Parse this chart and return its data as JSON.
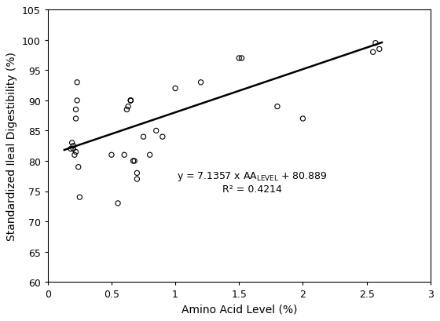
{
  "x_data": [
    0.18,
    0.19,
    0.2,
    0.2,
    0.21,
    0.22,
    0.22,
    0.22,
    0.23,
    0.23,
    0.24,
    0.25,
    0.5,
    0.55,
    0.6,
    0.62,
    0.63,
    0.65,
    0.65,
    0.65,
    0.67,
    0.68,
    0.7,
    0.7,
    0.75,
    0.8,
    0.85,
    0.9,
    1.0,
    1.2,
    1.5,
    1.52,
    1.8,
    2.0,
    2.55,
    2.57,
    2.6
  ],
  "y_data": [
    82.0,
    83.0,
    82.0,
    82.5,
    81.0,
    81.5,
    87.0,
    88.5,
    90.0,
    93.0,
    79.0,
    74.0,
    81.0,
    73.0,
    81.0,
    88.5,
    89.0,
    90.0,
    90.0,
    90.0,
    80.0,
    80.0,
    77.0,
    78.0,
    84.0,
    81.0,
    85.0,
    84.0,
    92.0,
    93.0,
    97.0,
    97.0,
    89.0,
    87.0,
    98.0,
    99.5,
    98.5
  ],
  "slope": 7.1357,
  "intercept": 80.889,
  "r2": 0.4214,
  "x_line_start": 0.13,
  "x_line_end": 2.62,
  "xlabel": "Amino Acid Level (%)",
  "ylabel": "Standardized Ileal Digestibility (%)",
  "xlim": [
    0,
    3
  ],
  "ylim": [
    60,
    105
  ],
  "xticks": [
    0,
    0.5,
    1.0,
    1.5,
    2.0,
    2.5,
    3.0
  ],
  "yticks": [
    60,
    65,
    70,
    75,
    80,
    85,
    90,
    95,
    100,
    105
  ],
  "equation_x": 1.6,
  "equation_y": 76.5,
  "marker_size": 20,
  "line_color": "#000000",
  "marker_color": "none",
  "marker_edge_color": "#000000",
  "marker_lw": 0.8,
  "line_width": 1.8,
  "xlabel_fontsize": 10,
  "ylabel_fontsize": 10,
  "tick_fontsize": 9,
  "eq_fontsize": 9,
  "background_color": "#ffffff",
  "figwidth": 5.6,
  "figheight": 4.1
}
